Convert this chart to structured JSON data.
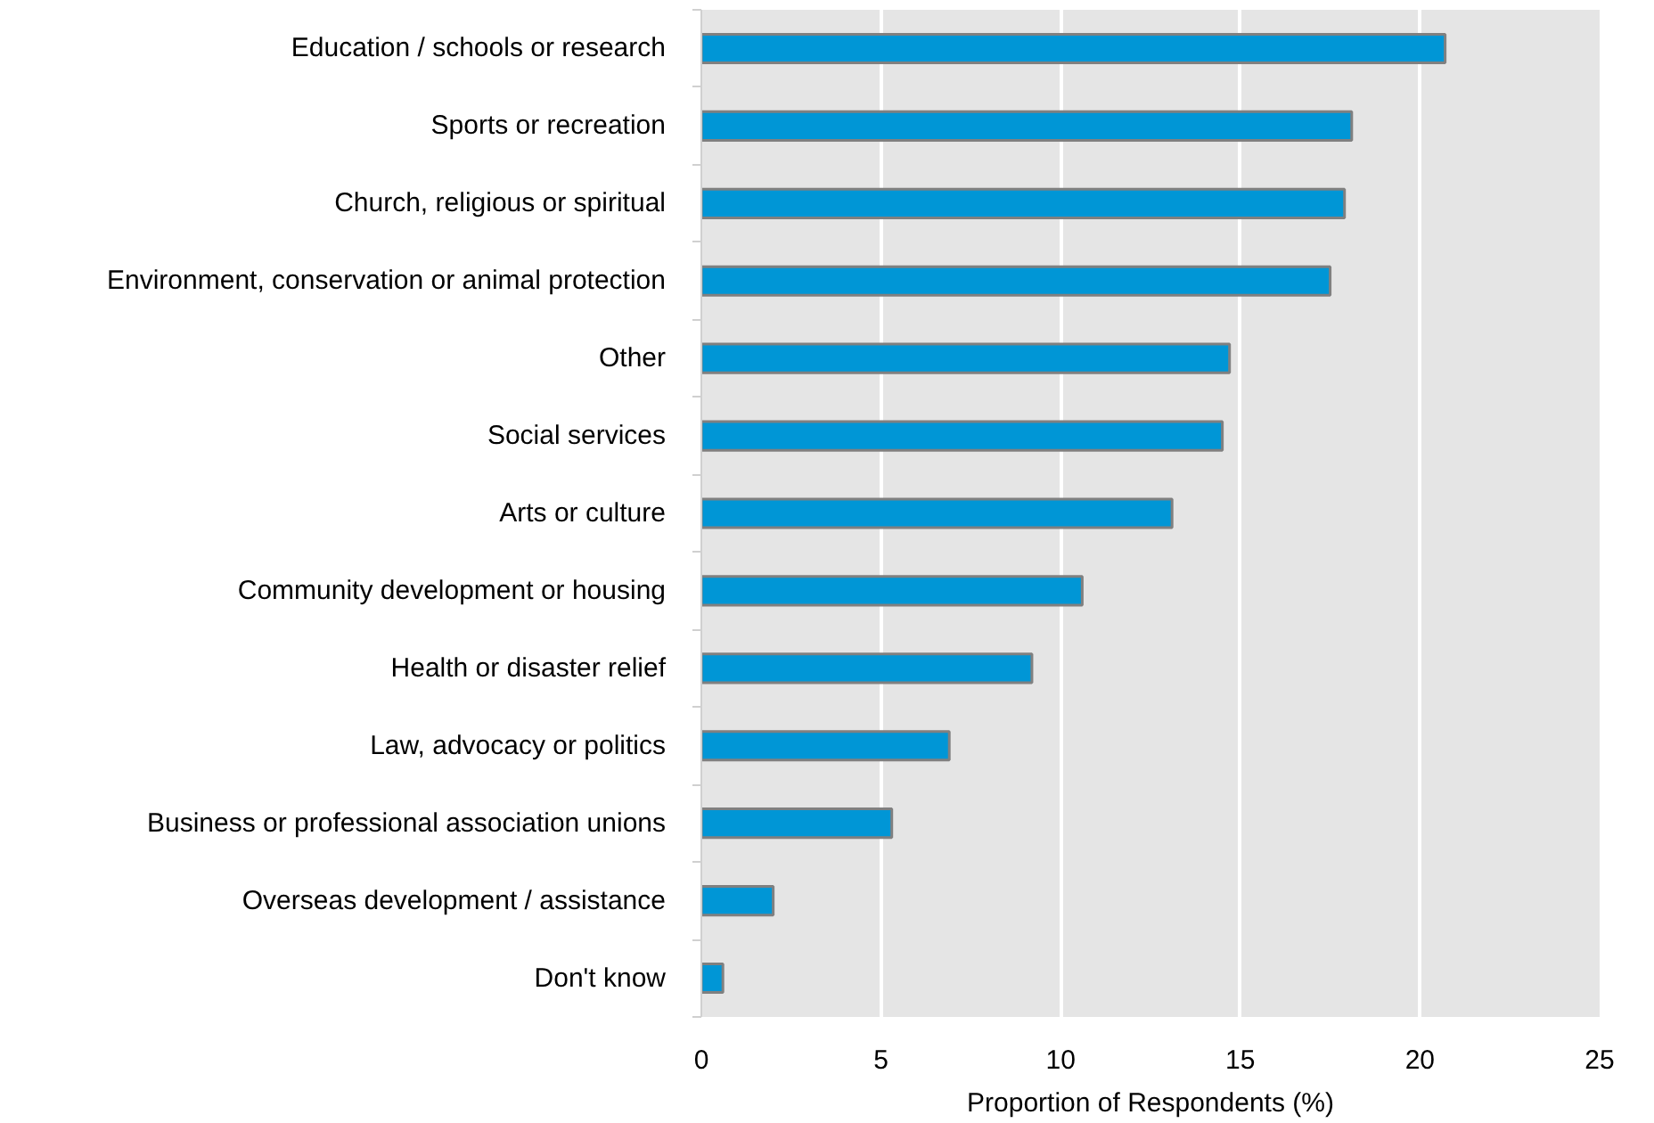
{
  "chart_data": {
    "type": "bar",
    "orientation": "horizontal",
    "categories": [
      "Education / schools or research",
      "Sports or recreation",
      "Church, religious or spiritual",
      "Environment, conservation or animal protection",
      "Other",
      "Social services",
      "Arts or culture",
      "Community development or housing",
      "Health or disaster relief",
      "Law, advocacy or politics",
      "Business or professional association unions",
      "Overseas development / assistance",
      "Don't know"
    ],
    "values": [
      20.7,
      18.1,
      17.9,
      17.5,
      14.7,
      14.5,
      13.1,
      10.6,
      9.2,
      6.9,
      5.3,
      2.0,
      0.6
    ],
    "color": "#0096d6",
    "xlabel": "Proportion of Respondents (%)",
    "xlim": [
      0,
      25
    ],
    "xticks": [
      0,
      5,
      10,
      15,
      20,
      25
    ],
    "grid": "x"
  }
}
